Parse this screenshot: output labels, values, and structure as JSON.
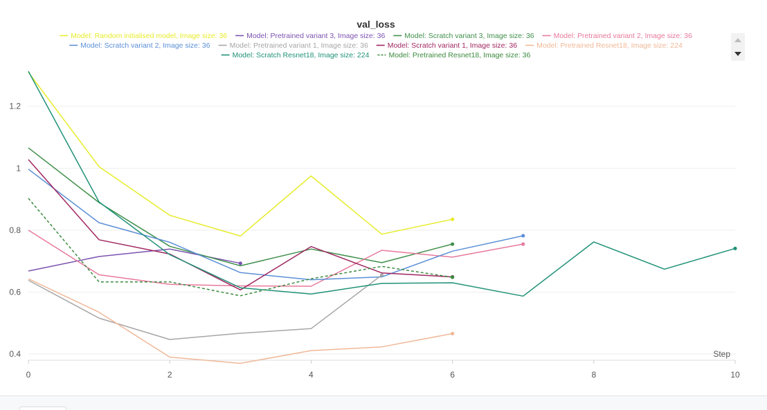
{
  "chart_data": {
    "type": "line",
    "title": "val_loss",
    "xlabel": "Step",
    "ylabel": "",
    "xlim": [
      0,
      10
    ],
    "ylim": [
      0.38,
      1.32
    ],
    "x_ticks": [
      "0",
      "2",
      "4",
      "6",
      "8",
      "10"
    ],
    "y_ticks": [
      "0.4",
      "0.6",
      "0.8",
      "1",
      "1.2"
    ],
    "grid": true,
    "legend_position": "top",
    "series": [
      {
        "name": "Model: Random initialised model, Image size: 36",
        "color": "#e6ec2a",
        "dashed": false,
        "x": [
          0,
          1,
          2,
          3,
          4,
          5,
          6
        ],
        "y": [
          1.31,
          1.005,
          0.848,
          0.781,
          0.975,
          0.787,
          0.835
        ]
      },
      {
        "name": "Model: Pretrained variant 3, Image size: 36",
        "color": "#7b52b0",
        "dashed": false,
        "x": [
          0,
          1,
          2,
          3
        ],
        "y": [
          0.668,
          0.715,
          0.739,
          0.693
        ]
      },
      {
        "name": "Model: Scratch variant 3, Image size: 36",
        "color": "#3f8f4a",
        "dashed": false,
        "x": [
          0,
          1,
          2,
          3,
          4,
          5,
          6
        ],
        "y": [
          1.066,
          0.889,
          0.748,
          0.685,
          0.739,
          0.695,
          0.755
        ]
      },
      {
        "name": "Model: Pretrained variant 2, Image size: 36",
        "color": "#e8799b",
        "dashed": false,
        "x": [
          0,
          1,
          2,
          3,
          4,
          5,
          6,
          7
        ],
        "y": [
          0.8,
          0.656,
          0.625,
          0.62,
          0.619,
          0.735,
          0.713,
          0.755
        ]
      },
      {
        "name": "Model: Scratch variant 2, Image size: 36",
        "color": "#5b8fd6",
        "dashed": false,
        "x": [
          0,
          1,
          2,
          3,
          4,
          5,
          6,
          7
        ],
        "y": [
          0.997,
          0.824,
          0.761,
          0.663,
          0.64,
          0.649,
          0.732,
          0.782
        ]
      },
      {
        "name": "Model: Pretrained variant 1, Image size: 36",
        "color": "#a6a6a6",
        "dashed": false,
        "x": [
          0,
          1,
          2,
          3,
          4,
          5
        ],
        "y": [
          0.638,
          0.516,
          0.447,
          0.467,
          0.482,
          0.655
        ]
      },
      {
        "name": "Model: Scratch variant 1, Image size: 36",
        "color": "#a02660",
        "dashed": false,
        "x": [
          0,
          1,
          2,
          3,
          4,
          5,
          6
        ],
        "y": [
          1.028,
          0.769,
          0.723,
          0.607,
          0.747,
          0.662,
          0.649
        ]
      },
      {
        "name": "Model: Pretrained Resnet18, Image size: 224",
        "color": "#f0b898",
        "dashed": false,
        "x": [
          0,
          1,
          2,
          3,
          4,
          5,
          6
        ],
        "y": [
          0.643,
          0.535,
          0.39,
          0.37,
          0.411,
          0.423,
          0.466
        ]
      },
      {
        "name": "Model: Scratch Resnet18, Image size: 224",
        "color": "#1f9177",
        "dashed": false,
        "x": [
          0,
          1,
          2,
          3,
          4,
          5,
          6,
          7,
          8,
          9,
          10
        ],
        "y": [
          1.313,
          0.891,
          0.721,
          0.614,
          0.594,
          0.628,
          0.63,
          0.587,
          0.762,
          0.674,
          0.741
        ]
      },
      {
        "name": "Model: Pretrained Resnet18, Image size: 36",
        "color": "#3a8a3e",
        "dashed": true,
        "x": [
          0,
          1,
          2,
          3,
          4,
          5,
          6
        ],
        "y": [
          0.903,
          0.633,
          0.633,
          0.588,
          0.643,
          0.683,
          0.648
        ]
      }
    ]
  }
}
